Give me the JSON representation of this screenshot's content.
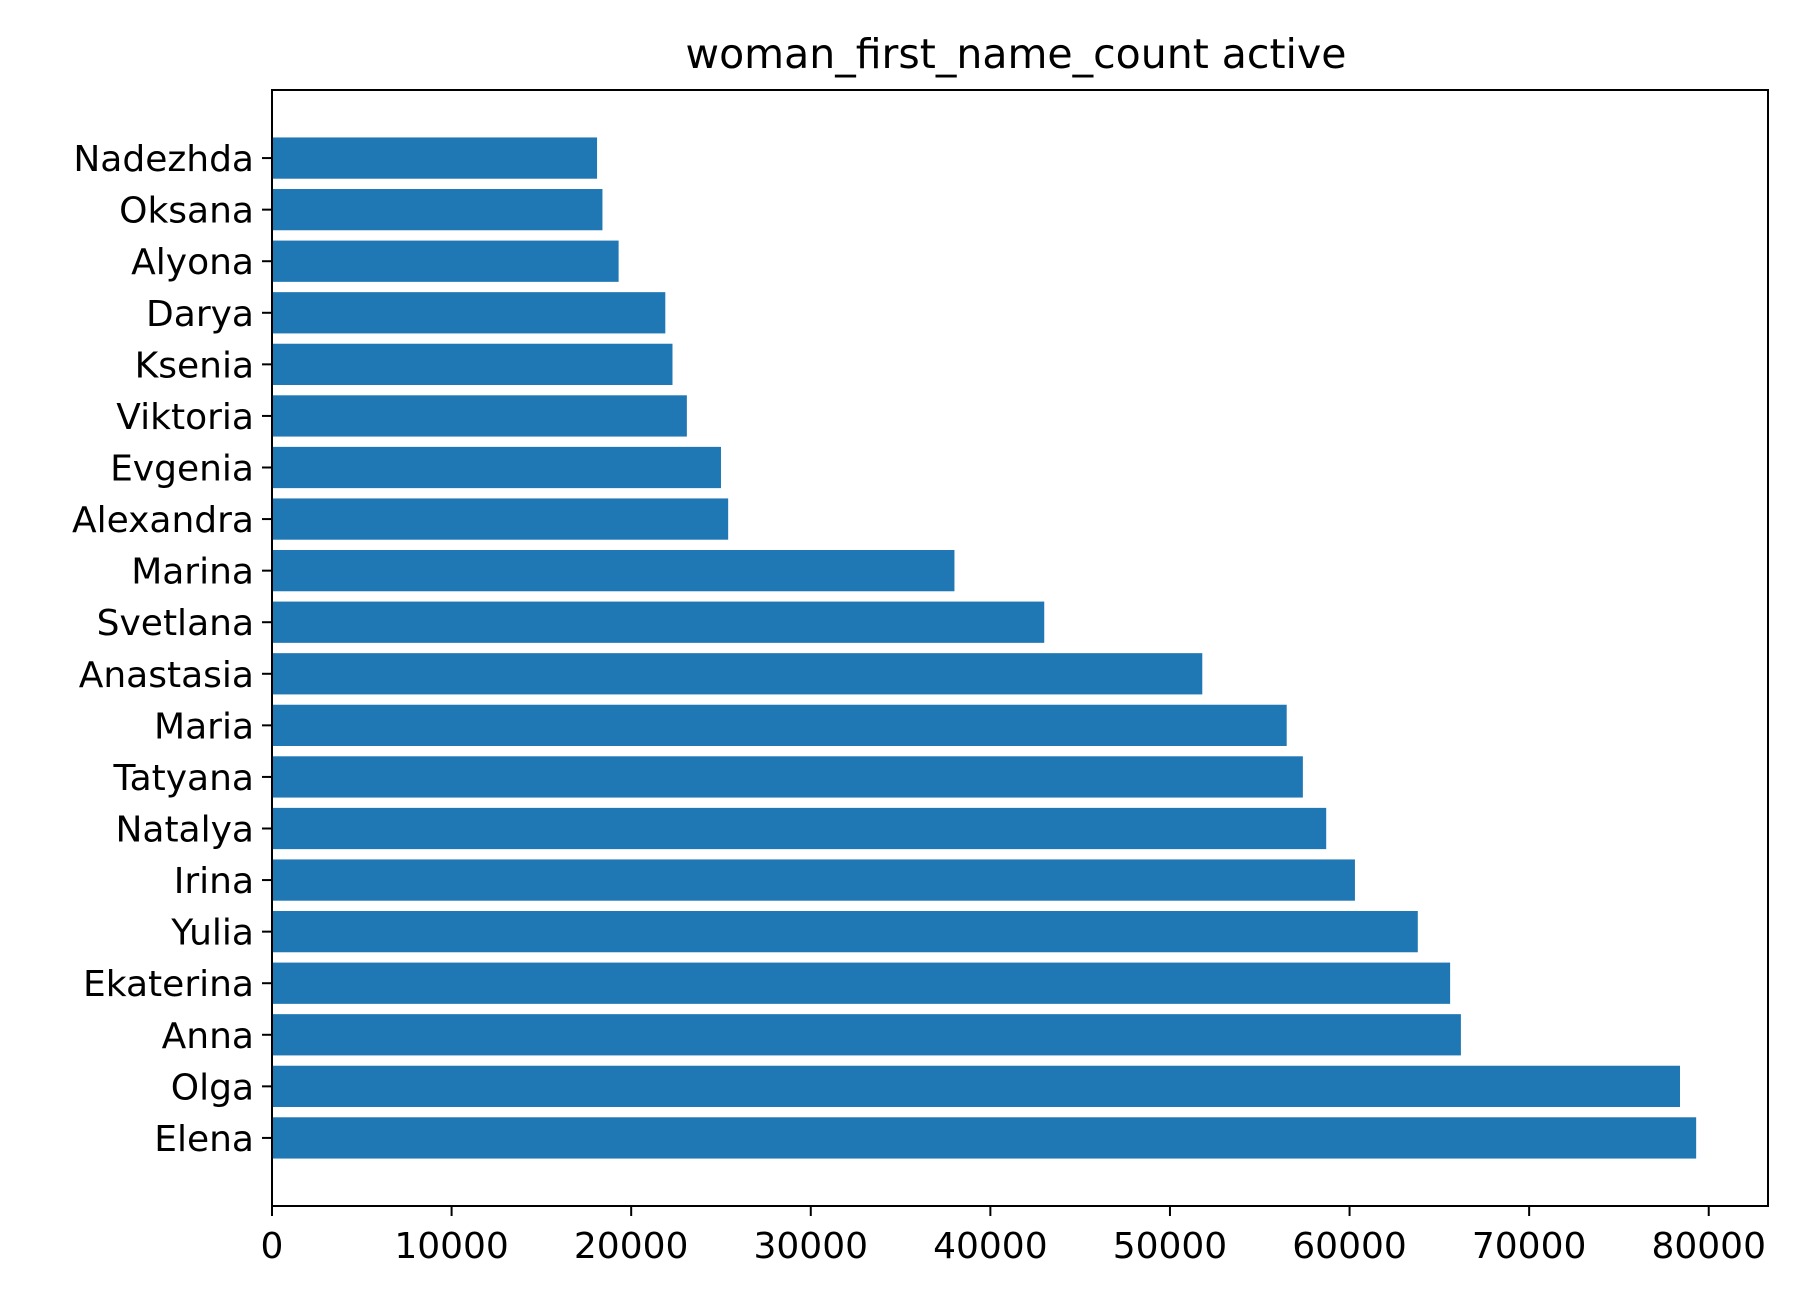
{
  "chart_data": {
    "type": "bar",
    "orientation": "horizontal",
    "title": "woman_first_name_count active",
    "xlabel": "",
    "ylabel": "",
    "categories": [
      "Elena",
      "Olga",
      "Anna",
      "Ekaterina",
      "Yulia",
      "Irina",
      "Natalya",
      "Tatyana",
      "Maria",
      "Anastasia",
      "Svetlana",
      "Marina",
      "Alexandra",
      "Evgenia",
      "Viktoria",
      "Ksenia",
      "Darya",
      "Alyona",
      "Oksana",
      "Nadezhda"
    ],
    "values": [
      79300,
      78400,
      66200,
      65600,
      63800,
      60300,
      58700,
      57400,
      56500,
      51800,
      43000,
      38000,
      25400,
      25000,
      23100,
      22300,
      21900,
      19300,
      18400,
      18100
    ],
    "xlim": [
      0,
      83300
    ],
    "xticks": [
      0,
      10000,
      20000,
      30000,
      40000,
      50000,
      60000,
      70000,
      80000
    ],
    "grid": false,
    "bar_color": "#1f77b4"
  }
}
